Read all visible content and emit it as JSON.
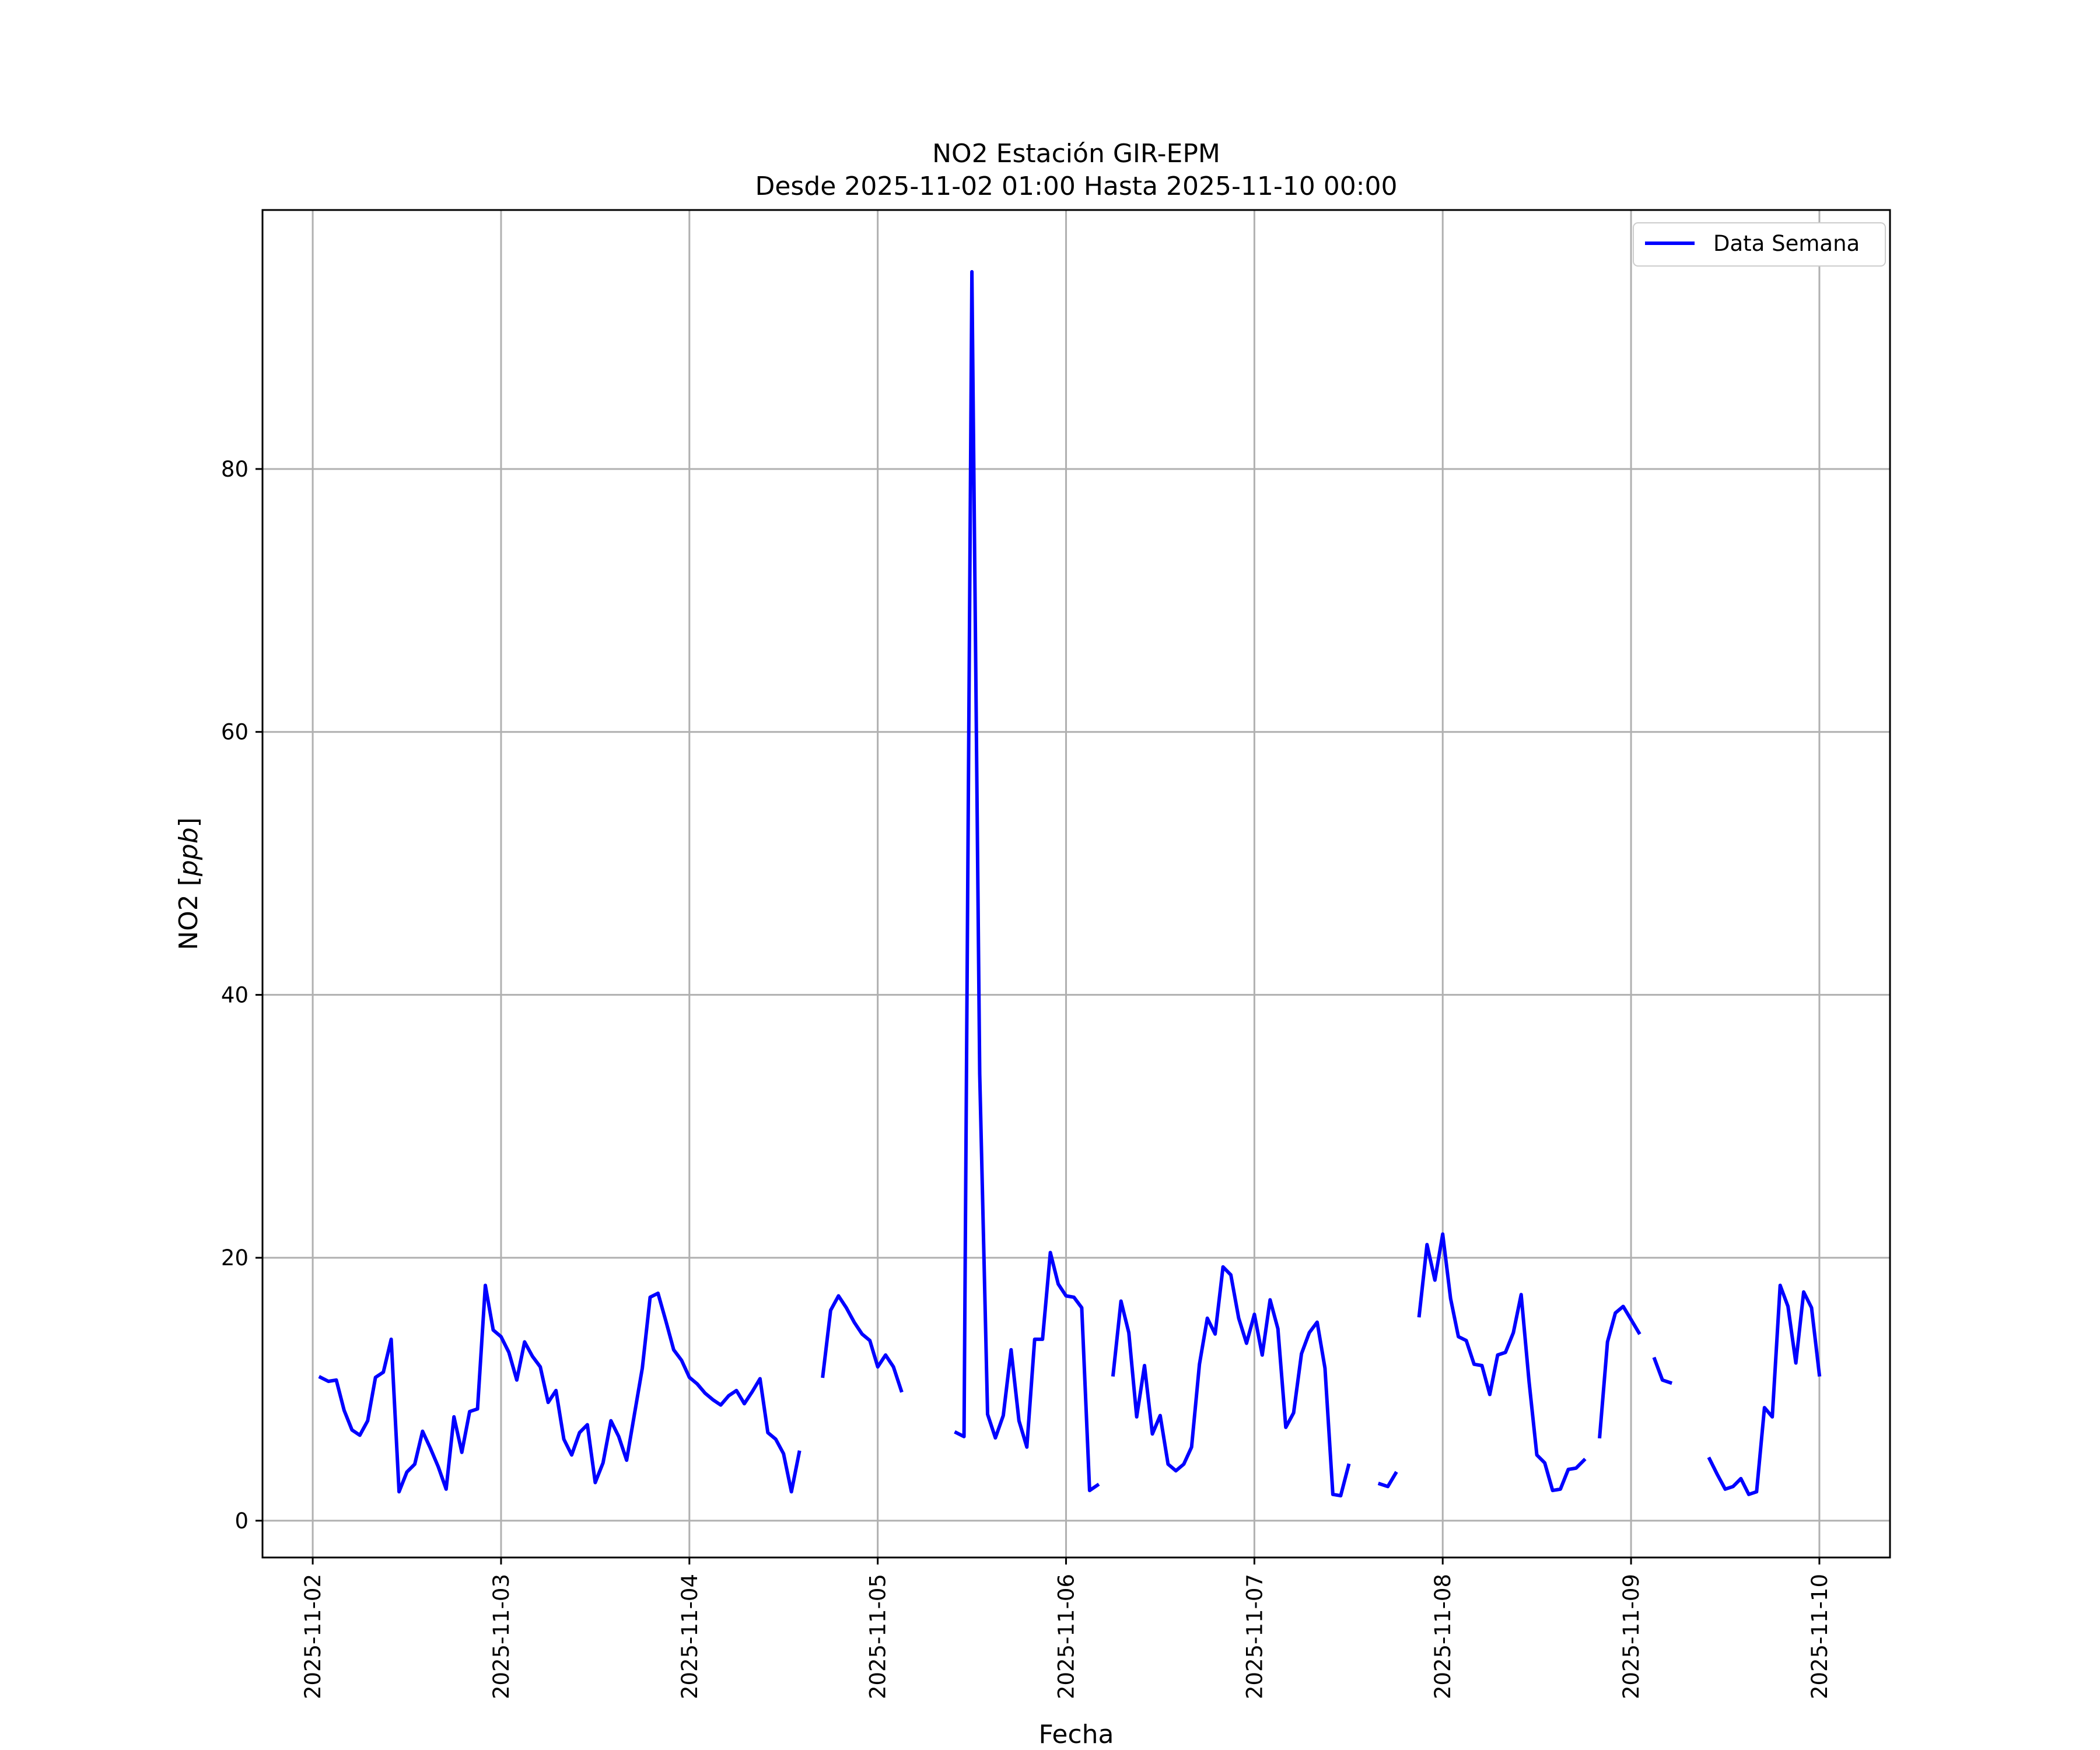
{
  "chart_data": {
    "type": "line",
    "title": "NO2 Estación GIR-EPM",
    "subtitle": "Desde 2025-11-02 01:00 Hasta 2025-11-10 00:00",
    "xlabel": "Fecha",
    "ylabel_main": "NO2 [",
    "ylabel_unit": "ppb",
    "ylabel_end": "]",
    "xlim": [
      "2025-11-01T17:36",
      "2025-11-10T09:00"
    ],
    "ylim": [
      -2.8,
      99.7
    ],
    "x_ticks": [
      "2025-11-02",
      "2025-11-03",
      "2025-11-04",
      "2025-11-05",
      "2025-11-06",
      "2025-11-07",
      "2025-11-08",
      "2025-11-09",
      "2025-11-10"
    ],
    "y_ticks": [
      0,
      20,
      40,
      60,
      80
    ],
    "y_tick_labels": [
      "0",
      "20",
      "40",
      "60",
      "80"
    ],
    "grid": true,
    "legend_position": "top-right",
    "series": [
      {
        "name": "Data Semana",
        "color": "#0000ff",
        "start": "2025-11-02T01:00",
        "step_hours": 1,
        "values": [
          10.9,
          10.6,
          10.7,
          8.4,
          6.9,
          6.5,
          7.6,
          10.9,
          11.3,
          13.8,
          2.2,
          3.7,
          4.3,
          6.8,
          5.5,
          4.1,
          2.4,
          7.9,
          5.2,
          8.3,
          8.5,
          17.9,
          14.5,
          14.0,
          12.8,
          10.7,
          13.6,
          12.5,
          11.7,
          9.0,
          9.9,
          6.2,
          5.0,
          6.7,
          7.3,
          2.9,
          4.4,
          7.6,
          6.4,
          4.6,
          8.1,
          11.6,
          17.0,
          17.3,
          15.2,
          13.0,
          12.2,
          10.9,
          10.4,
          9.7,
          9.2,
          8.8,
          9.5,
          9.9,
          8.9,
          9.8,
          10.8,
          6.7,
          6.2,
          5.1,
          2.2,
          5.2,
          null,
          null,
          11.0,
          16.0,
          17.1,
          16.2,
          15.1,
          14.2,
          13.7,
          11.7,
          12.6,
          11.7,
          9.9,
          null,
          null,
          null,
          null,
          null,
          null,
          6.7,
          6.4,
          95.0,
          34.0,
          8.1,
          6.3,
          8.0,
          13.0,
          7.6,
          5.6,
          13.8,
          13.8,
          20.4,
          18.0,
          17.1,
          17.0,
          16.2,
          2.3,
          2.7,
          null,
          11.1,
          16.7,
          14.3,
          7.9,
          11.8,
          6.6,
          8.0,
          4.3,
          3.8,
          4.3,
          5.6,
          11.9,
          15.4,
          14.2,
          19.3,
          18.7,
          15.4,
          13.5,
          15.7,
          12.6,
          16.8,
          14.6,
          7.1,
          8.2,
          12.7,
          14.3,
          15.1,
          11.6,
          2.0,
          1.9,
          4.2,
          null,
          null,
          null,
          2.8,
          2.6,
          3.6,
          null,
          null,
          15.6,
          21.0,
          18.3,
          21.8,
          16.9,
          14.0,
          13.7,
          11.9,
          11.8,
          9.6,
          12.6,
          12.8,
          14.3,
          17.2,
          10.6,
          5.0,
          4.4,
          2.3,
          2.4,
          3.9,
          4.0,
          4.6,
          null,
          6.4,
          13.6,
          15.8,
          16.3,
          15.3,
          14.3,
          null,
          12.3,
          10.7,
          10.5,
          null,
          null,
          null,
          null,
          4.7,
          3.5,
          2.4,
          2.6,
          3.2,
          2.0,
          2.2,
          8.6,
          7.9,
          17.9,
          16.3,
          12.0,
          17.4,
          16.2,
          11.1
        ]
      }
    ]
  }
}
